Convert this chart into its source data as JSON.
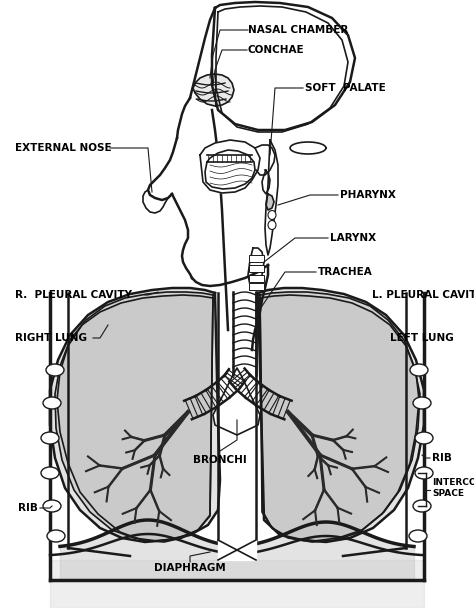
{
  "background_color": "#ffffff",
  "line_color": "#1a1a1a",
  "fill_gray": "#c8c8c8",
  "fill_dark": "#2a2a2a",
  "labels": {
    "nasal_chamber": "NASAL CHAMBER",
    "conchae": "CONCHAE",
    "soft_palate": "SOFT  PALATE",
    "external_nose": "EXTERNAL NOSE",
    "pharynx": "PHARYNX",
    "larynx": "LARYNX",
    "trachea": "TRACHEA",
    "r_pleural_cavity": "R.  PLEURAL CAVITY",
    "l_pleural_cavity": "L. PLEURAL CAVITY",
    "right_lung": "RIGHT LUNG",
    "left_lung": "LEFT LUNG",
    "bronchi": "BRONCHI",
    "rib_left": "RIB",
    "rib_right": "RIB",
    "intercostal_space": "INTERCOSTAL\nSPACE",
    "diaphragm": "DIAPHRAGM"
  },
  "figsize": [
    4.74,
    6.08
  ],
  "dpi": 100
}
